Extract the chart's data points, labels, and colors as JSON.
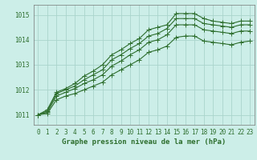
{
  "title": "Graphe pression niveau de la mer (hPa)",
  "background_color": "#cceee8",
  "grid_color": "#aad4cc",
  "line_color": "#2d6e2d",
  "xlim": [
    -0.5,
    23.5
  ],
  "ylim": [
    1010.6,
    1015.4
  ],
  "yticks": [
    1011,
    1012,
    1013,
    1014,
    1015
  ],
  "xticks": [
    0,
    1,
    2,
    3,
    4,
    5,
    6,
    7,
    8,
    9,
    10,
    11,
    12,
    13,
    14,
    15,
    16,
    17,
    18,
    19,
    20,
    21,
    22,
    23
  ],
  "series": [
    [
      1011.0,
      1011.2,
      1011.9,
      1012.05,
      1012.25,
      1012.55,
      1012.75,
      1013.0,
      1013.4,
      1013.6,
      1013.85,
      1014.05,
      1014.4,
      1014.5,
      1014.6,
      1015.05,
      1015.05,
      1015.05,
      1014.85,
      1014.75,
      1014.7,
      1014.65,
      1014.75,
      1014.75
    ],
    [
      1011.0,
      1011.15,
      1011.85,
      1012.0,
      1012.15,
      1012.4,
      1012.6,
      1012.8,
      1013.2,
      1013.4,
      1013.65,
      1013.85,
      1014.15,
      1014.25,
      1014.45,
      1014.85,
      1014.85,
      1014.85,
      1014.65,
      1014.6,
      1014.55,
      1014.5,
      1014.6,
      1014.6
    ],
    [
      1011.0,
      1011.1,
      1011.75,
      1011.9,
      1012.05,
      1012.25,
      1012.4,
      1012.6,
      1012.95,
      1013.15,
      1013.4,
      1013.6,
      1013.9,
      1014.0,
      1014.2,
      1014.6,
      1014.6,
      1014.6,
      1014.4,
      1014.35,
      1014.3,
      1014.25,
      1014.35,
      1014.35
    ],
    [
      1011.0,
      1011.05,
      1011.6,
      1011.75,
      1011.85,
      1012.0,
      1012.15,
      1012.3,
      1012.6,
      1012.8,
      1013.0,
      1013.2,
      1013.5,
      1013.6,
      1013.75,
      1014.1,
      1014.15,
      1014.15,
      1013.95,
      1013.9,
      1013.85,
      1013.8,
      1013.9,
      1013.95
    ]
  ],
  "marker": "+",
  "markersize": 4,
  "linewidth": 0.8,
  "tick_fontsize": 5.5,
  "label_fontsize": 6.5
}
